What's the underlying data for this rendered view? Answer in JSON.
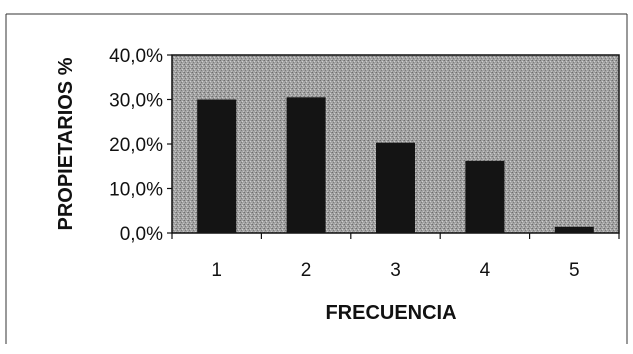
{
  "chart_data": {
    "type": "bar",
    "categories": [
      "1",
      "2",
      "3",
      "4",
      "5"
    ],
    "values": [
      30.0,
      30.5,
      20.3,
      16.2,
      1.4
    ],
    "xlabel": "FRECUENCIA",
    "ylabel": "PROPIETARIOS %",
    "ylim": [
      0,
      40
    ],
    "y_ticks": [
      0,
      10,
      20,
      30,
      40
    ],
    "y_tick_labels": [
      "0,0%",
      "10,0%",
      "20,0%",
      "30,0%",
      "40,0%"
    ],
    "grid": false,
    "legend": "none",
    "colors": {
      "bar": "#141414",
      "plot_background": "#9a9a9a",
      "frame": "#111111"
    }
  }
}
